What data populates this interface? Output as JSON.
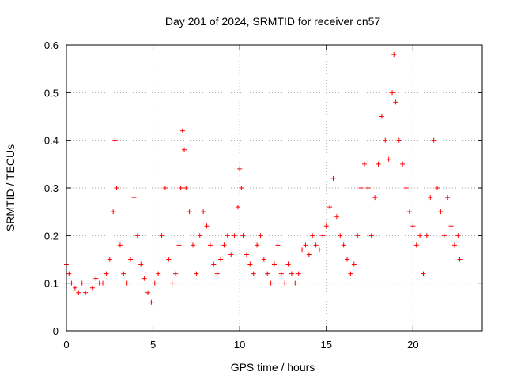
{
  "chart_data": {
    "type": "scatter",
    "title": "Day 201 of 2024, SRMTID for receiver cn57",
    "xlabel": "GPS time / hours",
    "ylabel": "SRMTID / TECUs",
    "xlim": [
      0,
      24
    ],
    "ylim": [
      0,
      0.6
    ],
    "x_ticks": [
      0,
      5,
      10,
      15,
      20
    ],
    "x_tick_labels": [
      "0",
      "5",
      "10",
      "15",
      "20"
    ],
    "y_ticks": [
      0,
      0.1,
      0.2,
      0.3,
      0.4,
      0.5,
      0.6
    ],
    "y_tick_labels": [
      "0",
      "0.1",
      "0.2",
      "0.3",
      "0.4",
      "0.5",
      "0.6"
    ],
    "grid": true,
    "marker": "+",
    "color": "#ff0000",
    "series": [
      {
        "name": "cn57",
        "x": [
          0.0,
          0.15,
          0.3,
          0.5,
          0.7,
          0.9,
          1.1,
          1.3,
          1.5,
          1.7,
          1.9,
          2.1,
          2.3,
          2.5,
          2.7,
          2.8,
          2.9,
          3.1,
          3.3,
          3.5,
          3.7,
          3.9,
          4.1,
          4.3,
          4.5,
          4.7,
          4.9,
          5.1,
          5.3,
          5.5,
          5.7,
          5.9,
          6.1,
          6.3,
          6.5,
          6.6,
          6.7,
          6.8,
          6.9,
          7.1,
          7.3,
          7.5,
          7.7,
          7.9,
          8.1,
          8.3,
          8.5,
          8.7,
          8.9,
          9.1,
          9.3,
          9.5,
          9.7,
          9.9,
          10.0,
          10.1,
          10.2,
          10.4,
          10.6,
          10.8,
          11.0,
          11.2,
          11.4,
          11.6,
          11.8,
          12.0,
          12.2,
          12.4,
          12.6,
          12.8,
          13.0,
          13.2,
          13.4,
          13.6,
          13.8,
          14.0,
          14.2,
          14.4,
          14.6,
          14.8,
          15.0,
          15.2,
          15.4,
          15.6,
          15.8,
          16.0,
          16.2,
          16.4,
          16.6,
          16.8,
          17.0,
          17.2,
          17.4,
          17.6,
          17.8,
          18.0,
          18.2,
          18.4,
          18.6,
          18.8,
          18.9,
          19.0,
          19.2,
          19.4,
          19.6,
          19.8,
          20.0,
          20.2,
          20.4,
          20.6,
          20.8,
          21.0,
          21.2,
          21.4,
          21.6,
          21.8,
          22.0,
          22.2,
          22.4,
          22.6,
          22.7
        ],
        "y": [
          0.14,
          0.12,
          0.1,
          0.09,
          0.08,
          0.1,
          0.08,
          0.1,
          0.09,
          0.11,
          0.1,
          0.1,
          0.12,
          0.15,
          0.25,
          0.4,
          0.3,
          0.18,
          0.12,
          0.1,
          0.15,
          0.28,
          0.2,
          0.14,
          0.11,
          0.08,
          0.06,
          0.1,
          0.12,
          0.2,
          0.3,
          0.15,
          0.1,
          0.12,
          0.18,
          0.3,
          0.42,
          0.38,
          0.3,
          0.25,
          0.18,
          0.12,
          0.2,
          0.25,
          0.22,
          0.18,
          0.14,
          0.12,
          0.15,
          0.18,
          0.2,
          0.16,
          0.2,
          0.26,
          0.34,
          0.3,
          0.2,
          0.16,
          0.14,
          0.12,
          0.18,
          0.2,
          0.15,
          0.12,
          0.1,
          0.14,
          0.18,
          0.12,
          0.1,
          0.14,
          0.12,
          0.1,
          0.12,
          0.17,
          0.18,
          0.16,
          0.2,
          0.18,
          0.17,
          0.2,
          0.22,
          0.26,
          0.32,
          0.24,
          0.2,
          0.18,
          0.15,
          0.12,
          0.14,
          0.2,
          0.3,
          0.35,
          0.3,
          0.2,
          0.28,
          0.35,
          0.45,
          0.4,
          0.36,
          0.5,
          0.58,
          0.48,
          0.4,
          0.35,
          0.3,
          0.25,
          0.22,
          0.18,
          0.2,
          0.12,
          0.2,
          0.28,
          0.4,
          0.3,
          0.25,
          0.2,
          0.28,
          0.22,
          0.18,
          0.2,
          0.15
        ]
      }
    ]
  }
}
